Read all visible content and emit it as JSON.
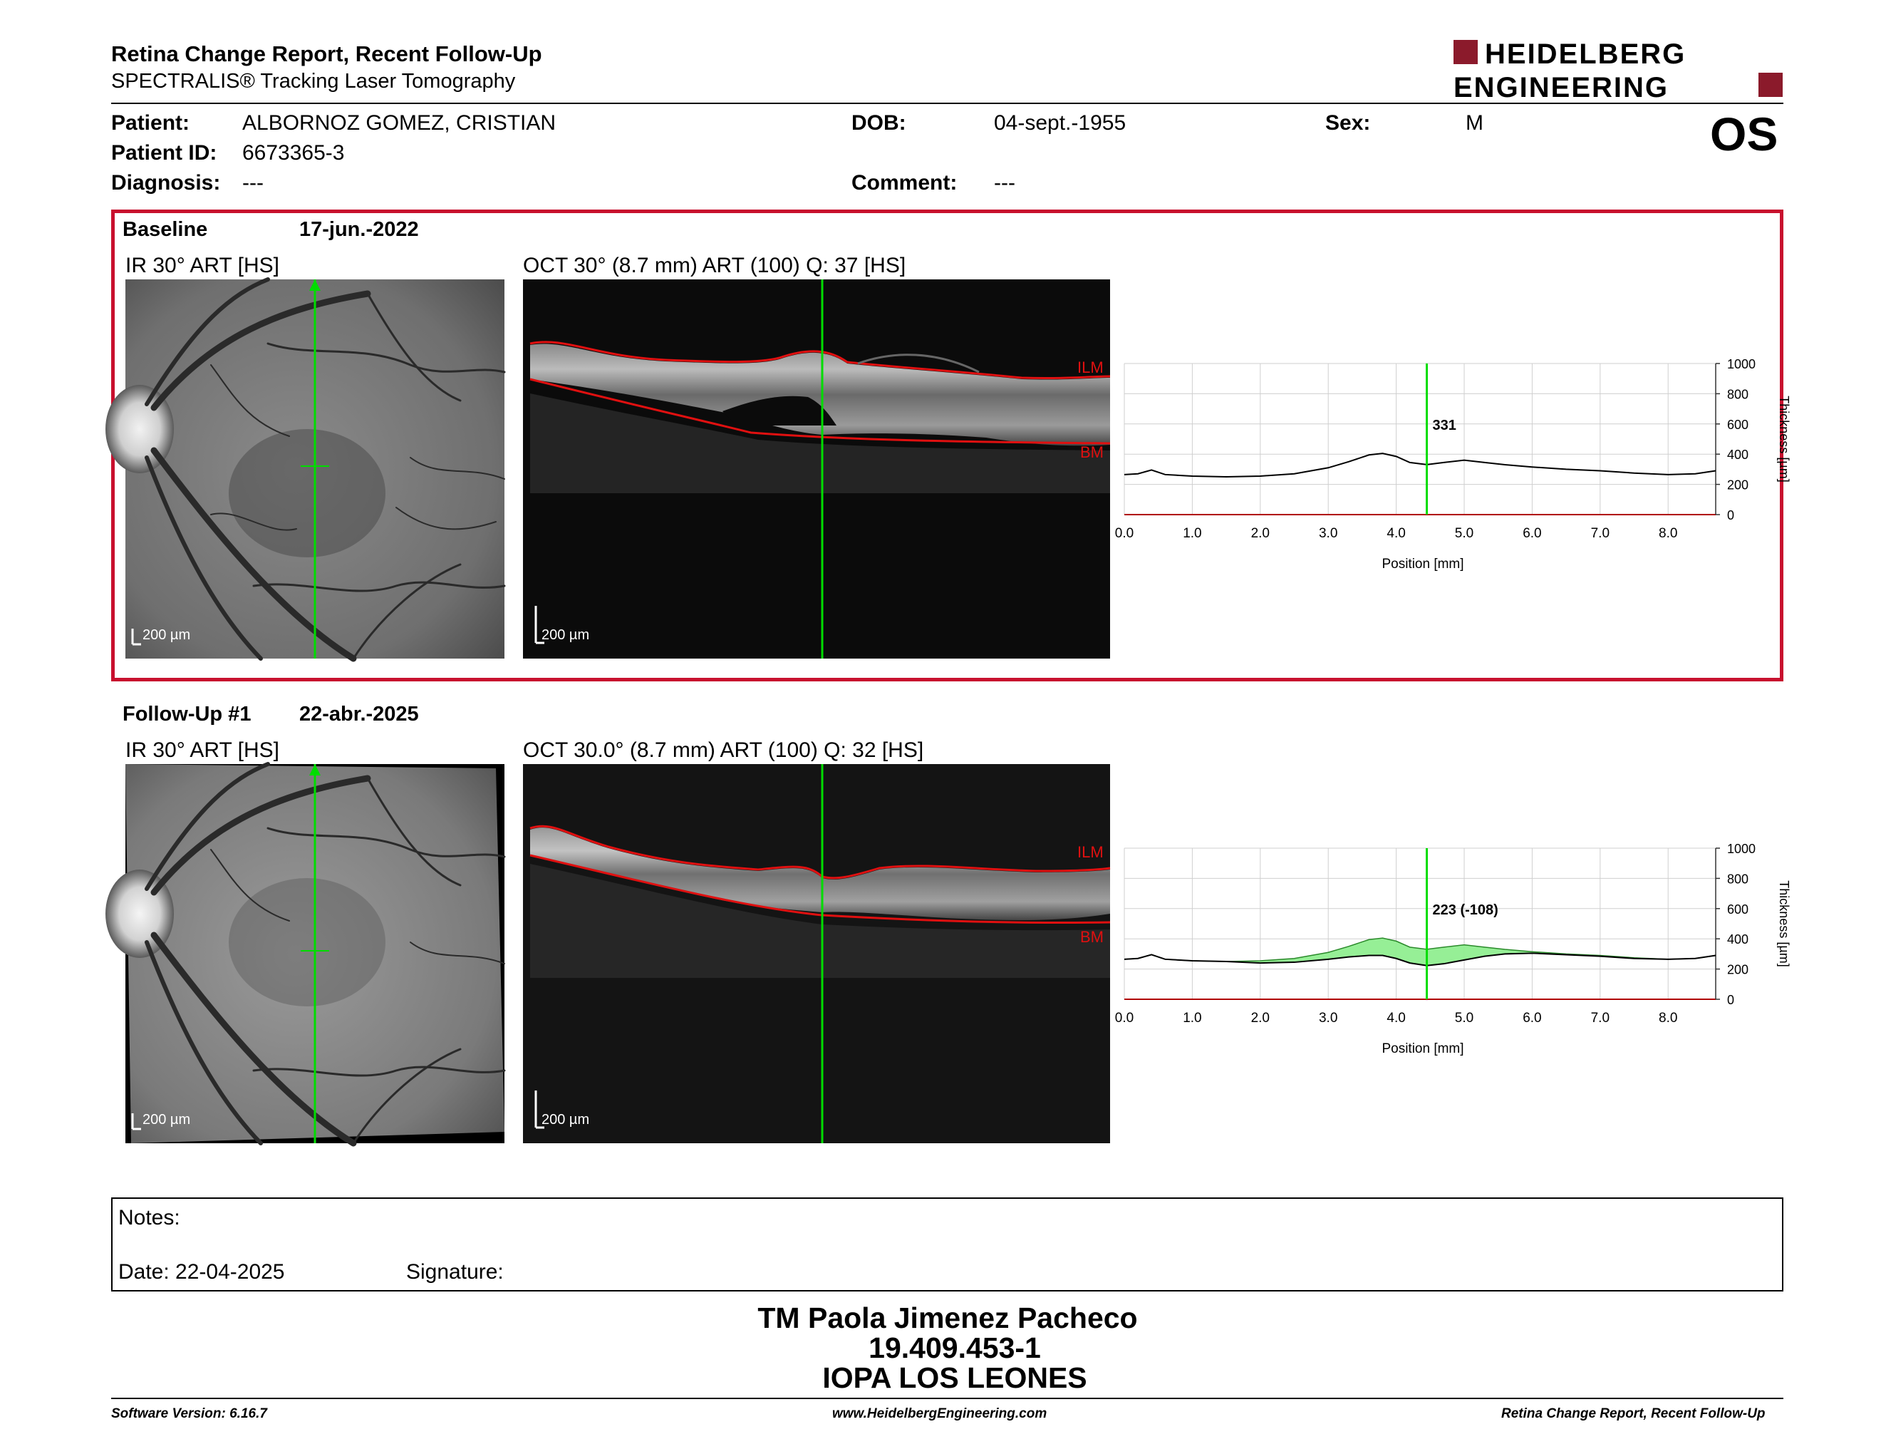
{
  "header": {
    "title": "Retina Change Report, Recent Follow-Up",
    "subtitle": "SPECTRALIS® Tracking Laser Tomography",
    "brand_line1": "HEIDELBERG",
    "brand_line2": "ENGINEERING",
    "eye": "OS"
  },
  "patient": {
    "name_label": "Patient:",
    "name": "ALBORNOZ GOMEZ, CRISTIAN",
    "id_label": "Patient ID:",
    "id": "6673365-3",
    "diagnosis_label": "Diagnosis:",
    "diagnosis": "---",
    "dob_label": "DOB:",
    "dob": "04-sept.-1955",
    "comment_label": "Comment:",
    "comment": "---",
    "sex_label": "Sex:",
    "sex": "M"
  },
  "baseline": {
    "label": "Baseline",
    "date": "17-jun.-2022",
    "ir_caption": "IR 30° ART [HS]",
    "oct_caption": "OCT 30° (8.7 mm) ART (100) Q: 37 [HS]",
    "scale_label": "200 µm",
    "ilm_label": "ILM",
    "bm_label": "BM"
  },
  "followup": {
    "label": "Follow-Up #1",
    "date": "22-abr.-2025",
    "ir_caption": "IR 30° ART [HS]",
    "oct_caption": "OCT 30.0° (8.7 mm) ART (100) Q: 32 [HS]",
    "scale_label": "200 µm",
    "ilm_label": "ILM",
    "bm_label": "BM"
  },
  "colors": {
    "accent_red": "#c8102e",
    "scan_line_green": "#00dd00",
    "change_fill": "#90ee90",
    "segmentation_red": "#e01010"
  },
  "chart_data": [
    {
      "type": "line",
      "id": "baseline-thickness",
      "xlabel": "Position [mm]",
      "ylabel": "Thickness [µm]",
      "xlim": [
        0,
        8.7
      ],
      "ylim": [
        0,
        1000
      ],
      "xticks": [
        "0.0",
        "1.0",
        "2.0",
        "3.0",
        "4.0",
        "5.0",
        "6.0",
        "7.0",
        "8.0"
      ],
      "yticks": [
        "0",
        "200",
        "400",
        "600",
        "800",
        "1000"
      ],
      "cursor_x": 4.45,
      "cursor_label": "331",
      "series": [
        {
          "x": [
            0.0,
            0.2,
            0.4,
            0.6,
            1.0,
            1.5,
            2.0,
            2.5,
            3.0,
            3.3,
            3.6,
            3.8,
            4.0,
            4.2,
            4.45,
            4.7,
            5.0,
            5.3,
            5.6,
            6.0,
            6.5,
            7.0,
            7.5,
            8.0,
            8.4,
            8.7
          ],
          "y": [
            265,
            270,
            295,
            265,
            255,
            250,
            255,
            270,
            310,
            350,
            395,
            405,
            385,
            345,
            331,
            345,
            360,
            345,
            330,
            315,
            300,
            290,
            275,
            265,
            270,
            290
          ]
        }
      ]
    },
    {
      "type": "area",
      "id": "followup-thickness",
      "xlabel": "Position [mm]",
      "ylabel": "Thickness [µm]",
      "xlim": [
        0,
        8.7
      ],
      "ylim": [
        0,
        1000
      ],
      "xticks": [
        "0.0",
        "1.0",
        "2.0",
        "3.0",
        "4.0",
        "5.0",
        "6.0",
        "7.0",
        "8.0"
      ],
      "yticks": [
        "0",
        "200",
        "400",
        "600",
        "800",
        "1000"
      ],
      "cursor_x": 4.45,
      "cursor_label": "223 (-108)",
      "series": [
        {
          "x": [
            0.0,
            0.2,
            0.4,
            0.6,
            1.0,
            1.5,
            2.0,
            2.5,
            3.0,
            3.3,
            3.6,
            3.8,
            4.0,
            4.2,
            4.45,
            4.7,
            5.0,
            5.3,
            5.6,
            6.0,
            6.5,
            7.0,
            7.5,
            8.0,
            8.4,
            8.7
          ],
          "y": [
            265,
            270,
            295,
            265,
            255,
            250,
            240,
            245,
            265,
            280,
            290,
            290,
            270,
            240,
            223,
            235,
            260,
            285,
            300,
            305,
            295,
            285,
            270,
            265,
            270,
            290
          ]
        }
      ]
    }
  ],
  "notes": {
    "label": "Notes:",
    "date_label": "Date: 22-04-2025",
    "signature_label": "Signature:"
  },
  "signature_block": {
    "name": "TM Paola Jimenez Pacheco",
    "id": "19.409.453-1",
    "org": "IOPA LOS LEONES"
  },
  "footer": {
    "software": "Software Version: 6.16.7",
    "website": "www.HeidelbergEngineering.com",
    "report": "Retina Change Report, Recent Follow-Up"
  }
}
